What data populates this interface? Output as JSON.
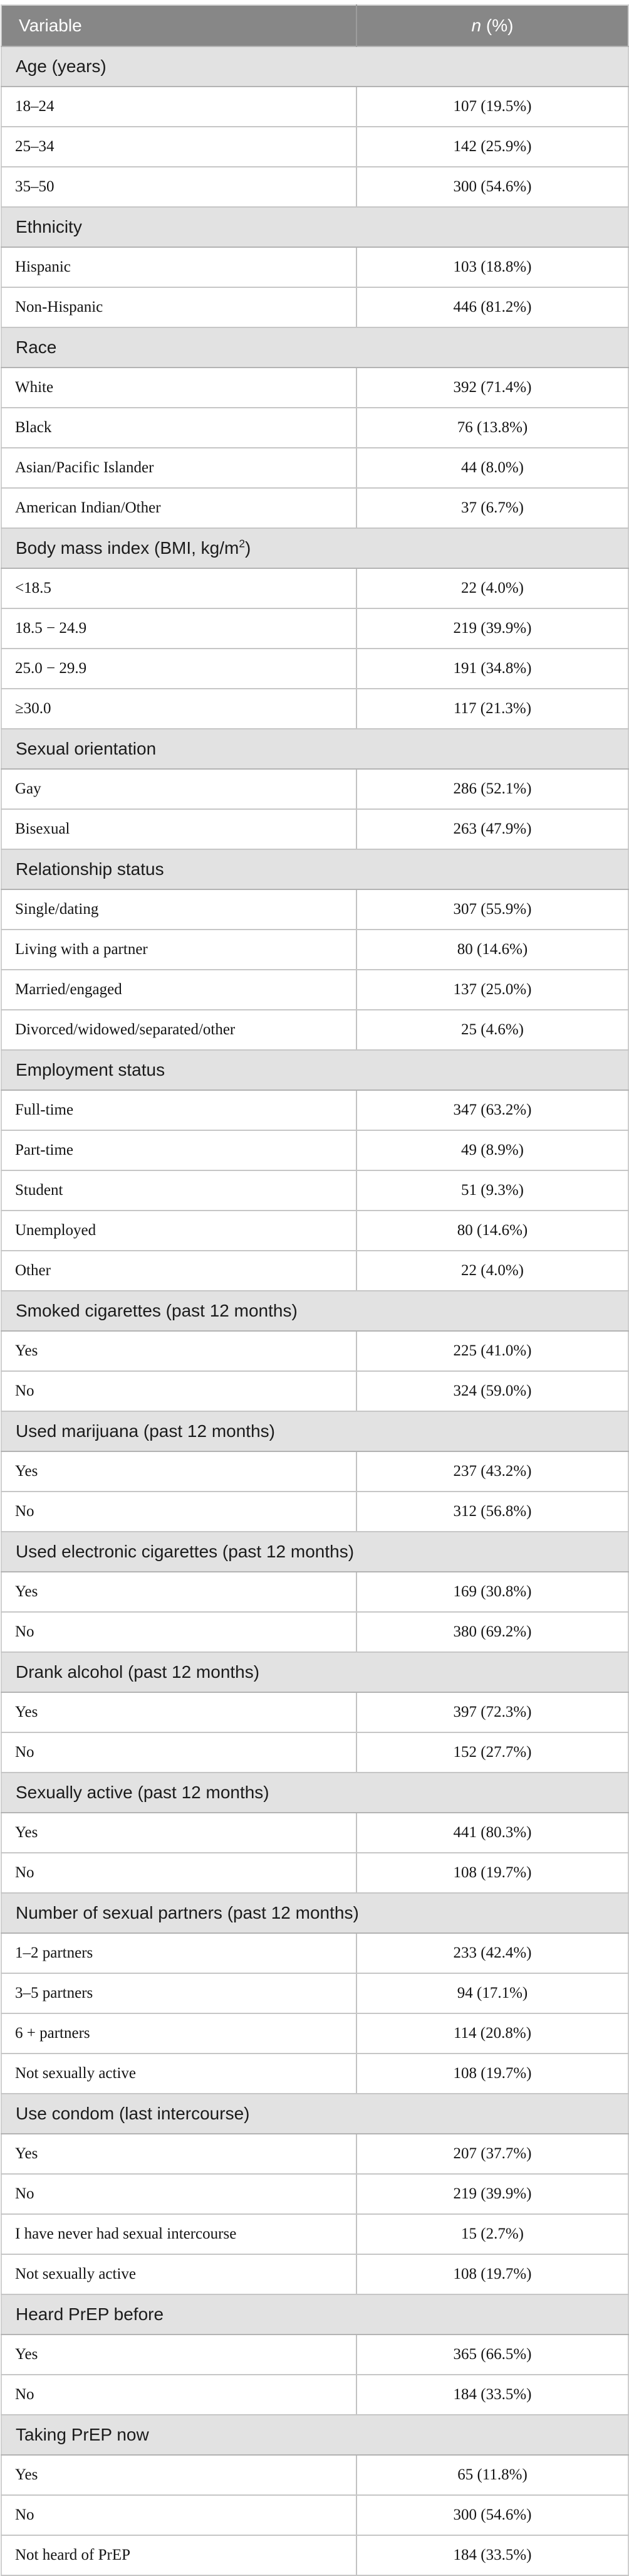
{
  "colors": {
    "header_bg": "#878787",
    "header_text": "#ffffff",
    "section_bg": "#e2e2e2",
    "section_text": "#1b1b1b",
    "row_bg": "#ffffff",
    "row_text": "#141414",
    "grid_line": "#c6c6c6",
    "section_border": "#b3b3b3"
  },
  "table": {
    "header": {
      "variable_label": "Variable",
      "n_italic": "n",
      "percent_suffix": " (%)"
    },
    "sections": [
      {
        "title": [
          {
            "t": "Age (years)"
          }
        ],
        "rows": [
          {
            "label": "18–24",
            "value": "107 (19.5%)"
          },
          {
            "label": "25–34",
            "value": "142 (25.9%)"
          },
          {
            "label": "35–50",
            "value": "300 (54.6%)"
          }
        ]
      },
      {
        "title": [
          {
            "t": "Ethnicity"
          }
        ],
        "rows": [
          {
            "label": "Hispanic",
            "value": "103 (18.8%)"
          },
          {
            "label": "Non-Hispanic",
            "value": "446 (81.2%)"
          }
        ]
      },
      {
        "title": [
          {
            "t": "Race"
          }
        ],
        "rows": [
          {
            "label": "White",
            "value": "392 (71.4%)"
          },
          {
            "label": "Black",
            "value": "76 (13.8%)"
          },
          {
            "label": "Asian/Pacific Islander",
            "value": "44 (8.0%)"
          },
          {
            "label": "American Indian/Other",
            "value": "37 (6.7%)"
          }
        ]
      },
      {
        "title": [
          {
            "t": "Body mass index (BMI, kg/m"
          },
          {
            "t": "2",
            "sup": true
          },
          {
            "t": ")"
          }
        ],
        "rows": [
          {
            "label": "<18.5",
            "value": "22 (4.0%)"
          },
          {
            "label": "18.5 − 24.9",
            "value": "219 (39.9%)"
          },
          {
            "label": "25.0 − 29.9",
            "value": "191 (34.8%)"
          },
          {
            "label": "≥30.0",
            "value": "117 (21.3%)"
          }
        ]
      },
      {
        "title": [
          {
            "t": "Sexual orientation"
          }
        ],
        "rows": [
          {
            "label": "Gay",
            "value": "286 (52.1%)"
          },
          {
            "label": "Bisexual",
            "value": "263 (47.9%)"
          }
        ]
      },
      {
        "title": [
          {
            "t": "Relationship status"
          }
        ],
        "rows": [
          {
            "label": "Single/dating",
            "value": "307 (55.9%)"
          },
          {
            "label": "Living with a partner",
            "value": "80 (14.6%)"
          },
          {
            "label": "Married/engaged",
            "value": "137 (25.0%)"
          },
          {
            "label": "Divorced/widowed/separated/other",
            "value": "25 (4.6%)"
          }
        ]
      },
      {
        "title": [
          {
            "t": "Employment status"
          }
        ],
        "rows": [
          {
            "label": "Full-time",
            "value": "347 (63.2%)"
          },
          {
            "label": "Part-time",
            "value": "49 (8.9%)"
          },
          {
            "label": "Student",
            "value": "51 (9.3%)"
          },
          {
            "label": "Unemployed",
            "value": "80 (14.6%)"
          },
          {
            "label": "Other",
            "value": "22 (4.0%)"
          }
        ]
      },
      {
        "title": [
          {
            "t": "Smoked cigarettes (past 12 months)"
          }
        ],
        "rows": [
          {
            "label": "Yes",
            "value": "225 (41.0%)"
          },
          {
            "label": "No",
            "value": "324 (59.0%)"
          }
        ]
      },
      {
        "title": [
          {
            "t": "Used marijuana (past 12 months)"
          }
        ],
        "rows": [
          {
            "label": "Yes",
            "value": "237 (43.2%)"
          },
          {
            "label": "No",
            "value": "312 (56.8%)"
          }
        ]
      },
      {
        "title": [
          {
            "t": "Used electronic cigarettes (past 12 months)"
          }
        ],
        "rows": [
          {
            "label": "Yes",
            "value": "169 (30.8%)"
          },
          {
            "label": "No",
            "value": "380 (69.2%)"
          }
        ]
      },
      {
        "title": [
          {
            "t": "Drank alcohol (past 12 months)"
          }
        ],
        "rows": [
          {
            "label": "Yes",
            "value": "397 (72.3%)"
          },
          {
            "label": "No",
            "value": "152 (27.7%)"
          }
        ]
      },
      {
        "title": [
          {
            "t": "Sexually active (past 12 months)"
          }
        ],
        "rows": [
          {
            "label": "Yes",
            "value": "441 (80.3%)"
          },
          {
            "label": "No",
            "value": "108 (19.7%)"
          }
        ]
      },
      {
        "title": [
          {
            "t": "Number of sexual partners (past 12 months)"
          }
        ],
        "rows": [
          {
            "label": "1–2 partners",
            "value": "233 (42.4%)"
          },
          {
            "label": "3–5 partners",
            "value": "94 (17.1%)"
          },
          {
            "label": "6 + partners",
            "value": "114 (20.8%)"
          },
          {
            "label": "Not sexually active",
            "value": "108 (19.7%)"
          }
        ]
      },
      {
        "title": [
          {
            "t": "Use condom (last intercourse)"
          }
        ],
        "rows": [
          {
            "label": "Yes",
            "value": "207 (37.7%)"
          },
          {
            "label": "No",
            "value": "219 (39.9%)"
          },
          {
            "label": "I have never had sexual intercourse",
            "value": "15 (2.7%)"
          },
          {
            "label": "Not sexually active",
            "value": "108 (19.7%)"
          }
        ]
      },
      {
        "title": [
          {
            "t": "Heard PrEP before"
          }
        ],
        "rows": [
          {
            "label": "Yes",
            "value": "365 (66.5%)"
          },
          {
            "label": "No",
            "value": "184 (33.5%)"
          }
        ]
      },
      {
        "title": [
          {
            "t": "Taking PrEP now"
          }
        ],
        "rows": [
          {
            "label": "Yes",
            "value": "65 (11.8%)"
          },
          {
            "label": "No",
            "value": "300 (54.6%)"
          },
          {
            "label": "Not heard of PrEP",
            "value": "184 (33.5%)"
          }
        ]
      }
    ]
  }
}
